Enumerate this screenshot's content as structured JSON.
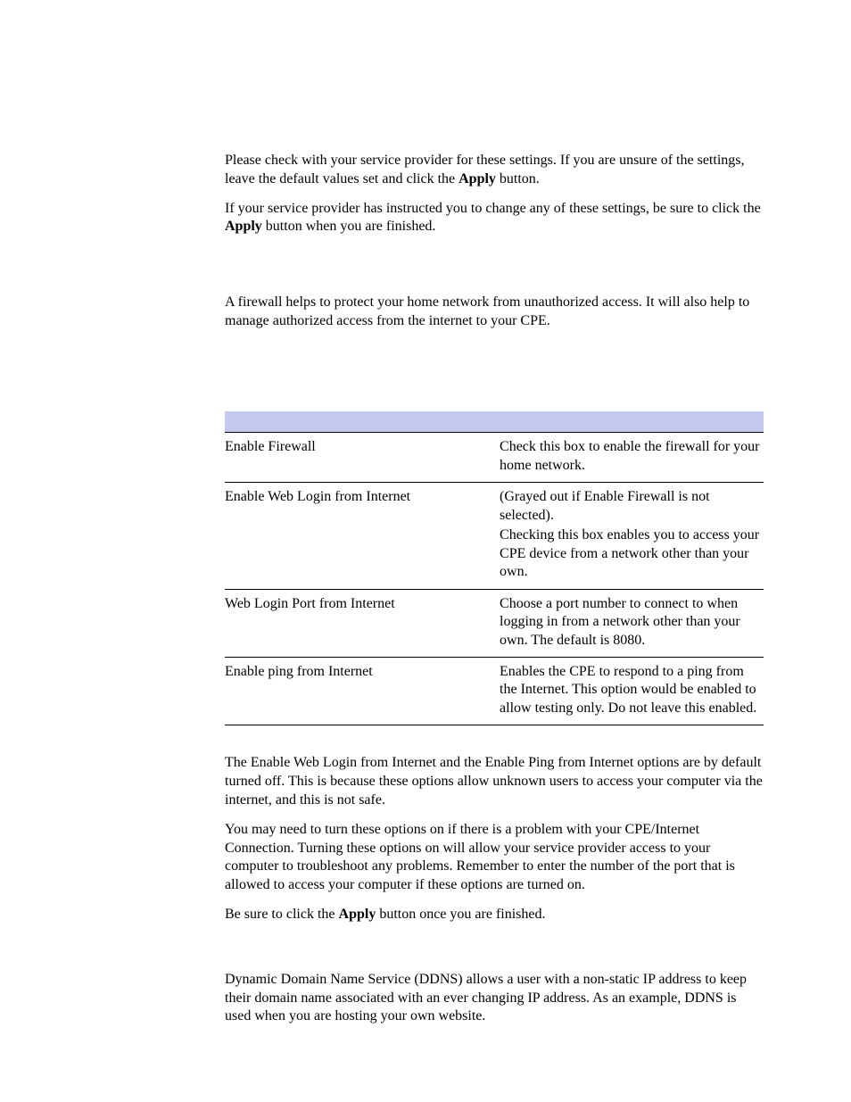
{
  "paragraphs": {
    "p1_a": "Please check with your service provider for these settings. If you are unsure of the settings, leave the default values set and click the ",
    "p1_b": "Apply",
    "p1_c": " button.",
    "p2_a": "If your service provider has instructed you to change any of these settings, be sure to click the ",
    "p2_b": "Apply",
    "p2_c": " button when you are finished.",
    "p3": "A firewall helps to protect your home network from unauthorized access. It will also help to manage authorized access from the internet to your CPE.",
    "p4": "The Enable Web Login from Internet and the Enable Ping from Internet options are by default turned off. This is because these options allow unknown users to access your computer via the internet, and this is not safe.",
    "p5": "You may need to turn these options on if there is a problem with your CPE/Internet Connection. Turning these options on will allow your service provider access to your computer to troubleshoot any problems. Remember to enter the number of the port that is allowed to access your computer if these options are turned on.",
    "p6_a": "Be sure to click the ",
    "p6_b": "Apply",
    "p6_c": " button once you are finished.",
    "p7": "Dynamic Domain Name Service (DDNS) allows a user with a non-static IP address to keep their domain name associated with an ever changing IP address. As an example, DDNS is used when you are hosting your own website."
  },
  "table": {
    "header_bg": "#c5c9f0",
    "rows": [
      {
        "field": "Enable Firewall",
        "desc_parts": [
          "Check this box to enable the firewall for your home network."
        ]
      },
      {
        "field": "Enable Web Login from Internet",
        "desc_parts": [
          "(Grayed out if Enable Firewall is not selected).",
          "Checking this box enables you to access your CPE device from a network other than your own."
        ]
      },
      {
        "field": "Web Login Port from Internet",
        "desc_parts": [
          "Choose a port number to connect to when logging in from a network other than your own. The default is 8080."
        ]
      },
      {
        "field": "Enable ping from Internet",
        "desc_parts": [
          "Enables the CPE to respond to a ping from the Internet. This option would be enabled to allow testing only. Do not leave this enabled."
        ]
      }
    ]
  }
}
